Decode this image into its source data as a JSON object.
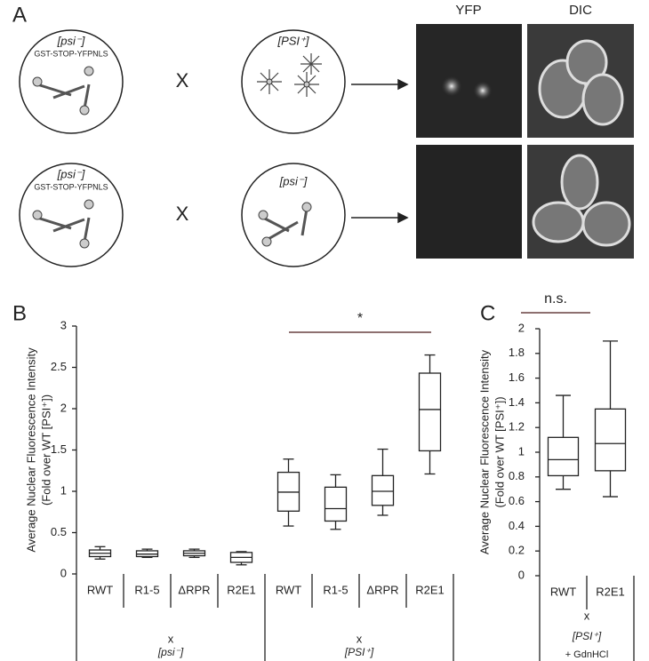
{
  "panel_labels": [
    "A",
    "B",
    "C"
  ],
  "panel_a": {
    "columns": [
      "YFP",
      "DIC"
    ],
    "rows": [
      {
        "left": {
          "label": "[psi⁻]",
          "construct": "GST-STOP-YFPNLS"
        },
        "cross": "X",
        "right": {
          "label": "[PSI⁺]"
        }
      },
      {
        "left": {
          "label": "[psi⁻]",
          "construct": "GST-STOP-YFPNLS"
        },
        "cross": "X",
        "right": {
          "label": "[psi⁻]"
        }
      }
    ]
  },
  "chart_data": [
    {
      "type": "box",
      "y_label": [
        "Average Nuclear Fluorescence Intensity",
        "(Fold over WT [PSI⁺])"
      ],
      "ylim": [
        0,
        3
      ],
      "yticks": [
        0,
        0.5,
        1,
        1.5,
        2,
        2.5,
        3
      ],
      "significance": "*",
      "groups": [
        {
          "prefix": "x",
          "label": "[psi⁻]",
          "categories": [
            "RWT",
            "R1-5",
            "ΔRPR",
            "R2E1"
          ],
          "boxes": [
            {
              "whisker_low": 0.18,
              "q1": 0.21,
              "median": 0.25,
              "q3": 0.29,
              "whisker_high": 0.33
            },
            {
              "whisker_low": 0.2,
              "q1": 0.21,
              "median": 0.24,
              "q3": 0.28,
              "whisker_high": 0.3
            },
            {
              "whisker_low": 0.2,
              "q1": 0.22,
              "median": 0.25,
              "q3": 0.28,
              "whisker_high": 0.3
            },
            {
              "whisker_low": 0.11,
              "q1": 0.14,
              "median": 0.2,
              "q3": 0.26,
              "whisker_high": 0.27
            }
          ]
        },
        {
          "prefix": "x",
          "label": "[PSI⁺]",
          "categories": [
            "RWT",
            "R1-5",
            "ΔRPR",
            "R2E1"
          ],
          "boxes": [
            {
              "whisker_low": 0.58,
              "q1": 0.76,
              "median": 0.99,
              "q3": 1.23,
              "whisker_high": 1.39
            },
            {
              "whisker_low": 0.54,
              "q1": 0.64,
              "median": 0.79,
              "q3": 1.05,
              "whisker_high": 1.2
            },
            {
              "whisker_low": 0.71,
              "q1": 0.83,
              "median": 1.0,
              "q3": 1.19,
              "whisker_high": 1.51
            },
            {
              "whisker_low": 1.21,
              "q1": 1.49,
              "median": 1.99,
              "q3": 2.43,
              "whisker_high": 2.65
            }
          ]
        }
      ]
    },
    {
      "type": "box",
      "y_label": [
        "Average Nuclear Fluorescence Intensity",
        "(Fold over WT [PSI⁺])"
      ],
      "ylim": [
        0,
        2
      ],
      "yticks": [
        0,
        0.2,
        0.4,
        0.6,
        0.8,
        1,
        1.2,
        1.4,
        1.6,
        1.8,
        2
      ],
      "significance": "n.s.",
      "groups": [
        {
          "prefix": "x",
          "label": "[PSI⁺]",
          "note": "+ GdnHCl",
          "categories": [
            "RWT",
            "R2E1"
          ],
          "boxes": [
            {
              "whisker_low": 0.7,
              "q1": 0.81,
              "median": 0.94,
              "q3": 1.12,
              "whisker_high": 1.46
            },
            {
              "whisker_low": 0.64,
              "q1": 0.85,
              "median": 1.07,
              "q3": 1.35,
              "whisker_high": 1.9
            }
          ]
        }
      ]
    }
  ]
}
